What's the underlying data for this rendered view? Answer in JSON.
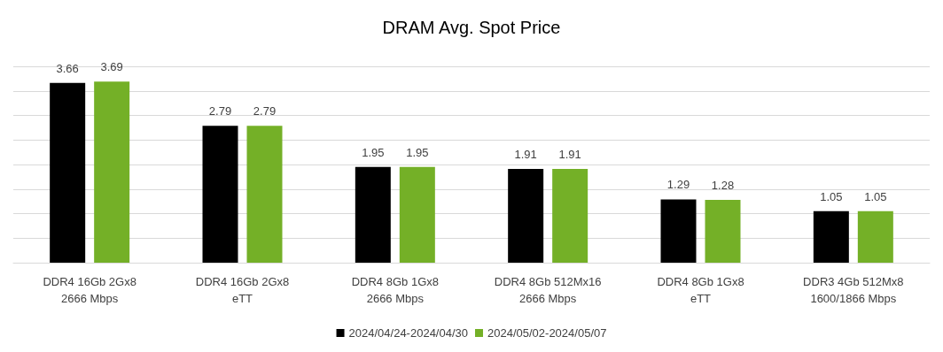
{
  "chart_data": {
    "type": "bar",
    "title": "DRAM Avg. Spot Price",
    "categories": [
      "DDR4 16Gb 2Gx8\n2666 Mbps",
      "DDR4 16Gb 2Gx8\neTT",
      "DDR4 8Gb 1Gx8\n2666 Mbps",
      "DDR4 8Gb 512Mx16\n2666 Mbps",
      "DDR4 8Gb 1Gx8\neTT",
      "DDR3 4Gb 512Mx8\n1600/1866 Mbps"
    ],
    "series": [
      {
        "name": "2024/04/24-2024/04/30",
        "color": "#000000",
        "values": [
          3.66,
          2.79,
          1.95,
          1.91,
          1.29,
          1.05
        ]
      },
      {
        "name": "2024/05/02-2024/05/07",
        "color": "#74b027",
        "values": [
          3.69,
          2.79,
          1.95,
          1.91,
          1.28,
          1.05
        ]
      }
    ],
    "ylim": [
      0,
      4
    ],
    "yticks": [
      {
        "value": 0,
        "label": null
      },
      {
        "value": 0.5,
        "label": null
      },
      {
        "value": 1,
        "label": null
      },
      {
        "value": 1.5,
        "label": null
      },
      {
        "value": 2,
        "label": null
      },
      {
        "value": 2.5,
        "label": null
      },
      {
        "value": 3,
        "label": null
      },
      {
        "value": 3.5,
        "label": null
      },
      {
        "value": 4,
        "label": null
      }
    ],
    "tick_labels": "x",
    "grid": "y",
    "legend": "bottom",
    "data_labels": true
  }
}
